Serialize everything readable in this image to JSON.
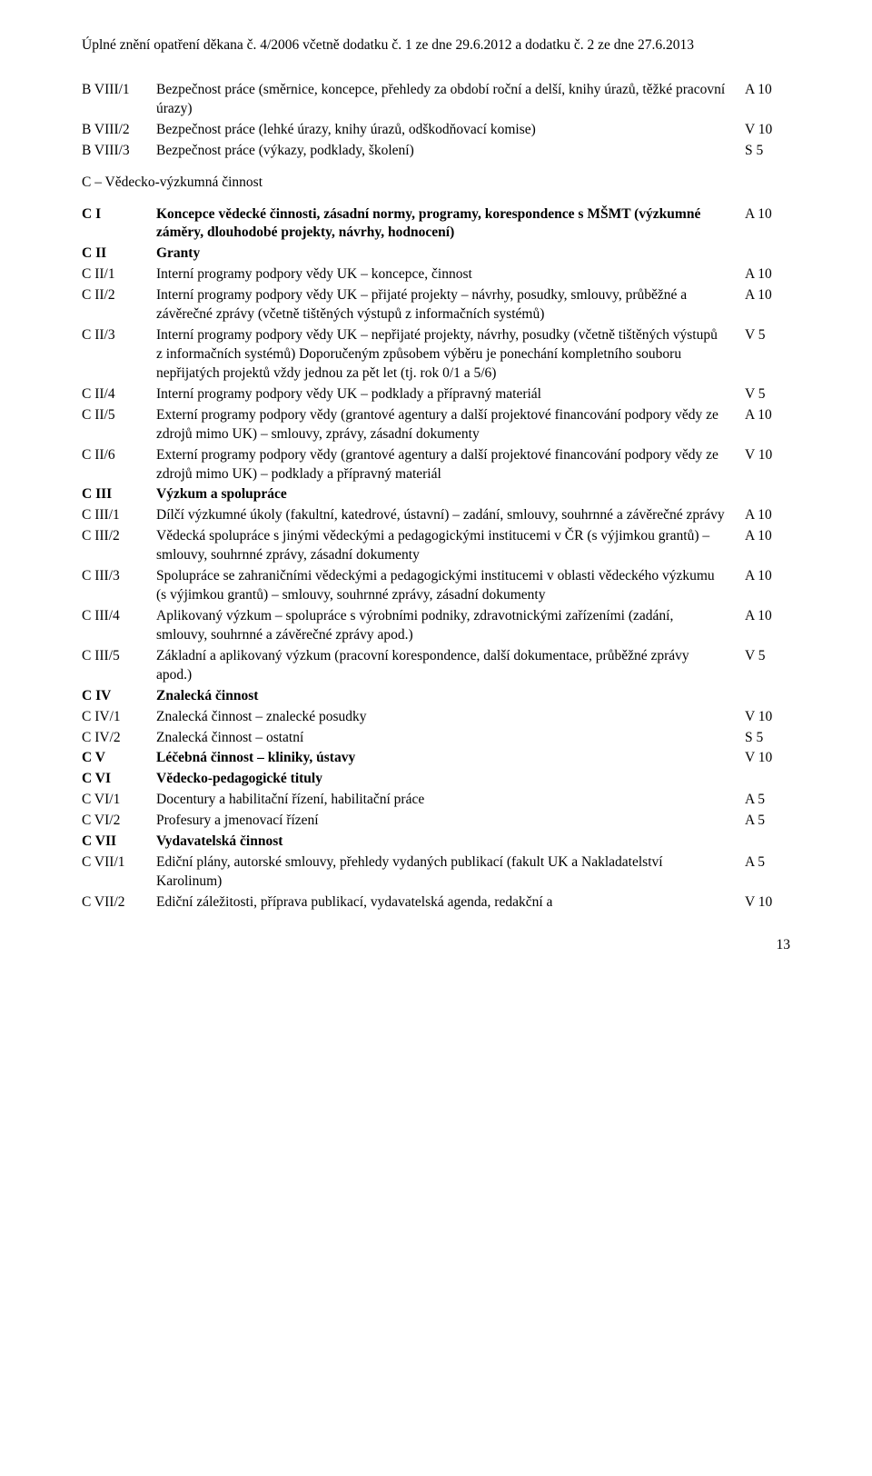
{
  "header": "Úplné znění opatření děkana č. 4/2006 včetně dodatku č. 1 ze dne 29.6.2012 a dodatku č. 2 ze dne 27.6.2013",
  "sectionC_heading": "C – Vědecko-výzkumná činnost",
  "page_number": "13",
  "rows": [
    {
      "code": "B VIII/1",
      "text": "Bezpečnost práce (směrnice, koncepce, přehledy za období roční a delší, knihy úrazů, těžké pracovní úrazy)",
      "val": "A 10",
      "bold": false
    },
    {
      "code": "B VIII/2",
      "text": "Bezpečnost práce (lehké úrazy, knihy úrazů, odškodňovací komise)",
      "val": "V 10",
      "bold": false
    },
    {
      "code": "B VIII/3",
      "text": "Bezpečnost práce (výkazy, podklady, školení)",
      "val": "S 5",
      "bold": false
    }
  ],
  "rowsC": [
    {
      "code": "C I",
      "text": "Koncepce vědecké činnosti, zásadní normy, programy, korespondence s MŠMT (výzkumné záměry, dlouhodobé projekty, návrhy, hodnocení)",
      "val": "A 10",
      "bold": true
    },
    {
      "code": "C II",
      "text": "Granty",
      "val": "",
      "bold": true
    },
    {
      "code": "C II/1",
      "text": "Interní programy podpory vědy UK – koncepce, činnost",
      "val": "A 10",
      "bold": false
    },
    {
      "code": "C II/2",
      "text": "Interní programy podpory vědy UK – přijaté projekty – návrhy, posudky, smlouvy, průběžné a závěrečné zprávy (včetně tištěných výstupů z informačních systémů)",
      "val": "A 10",
      "bold": false
    },
    {
      "code": "C II/3",
      "text": "Interní programy podpory vědy UK – nepřijaté projekty, návrhy, posudky (včetně tištěných výstupů z informačních systémů) Doporučeným způsobem výběru je ponechání kompletního souboru nepřijatých projektů vždy jednou za pět let (tj. rok 0/1 a 5/6)",
      "val": "V 5",
      "bold": false
    },
    {
      "code": "C II/4",
      "text": "Interní programy podpory vědy UK – podklady a přípravný materiál",
      "val": "V 5",
      "bold": false
    },
    {
      "code": "C II/5",
      "text": "Externí programy podpory vědy (grantové agentury a další projektové financování podpory vědy ze zdrojů mimo UK) – smlouvy, zprávy, zásadní dokumenty",
      "val": "A 10",
      "bold": false
    },
    {
      "code": "C II/6",
      "text": "Externí programy podpory vědy (grantové agentury a další projektové financování podpory vědy ze zdrojů mimo UK) – podklady a přípravný materiál",
      "val": "V 10",
      "bold": false
    },
    {
      "code": "C III",
      "text": "Výzkum a spolupráce",
      "val": "",
      "bold": true
    },
    {
      "code": "C III/1",
      "text": "Dílčí výzkumné úkoly (fakultní, katedrové, ústavní) – zadání, smlouvy, souhrnné a závěrečné zprávy",
      "val": "A 10",
      "bold": false
    },
    {
      "code": "C III/2",
      "text": "Vědecká spolupráce s jinými vědeckými a pedagogickými institucemi v ČR (s výjimkou grantů) – smlouvy, souhrnné zprávy, zásadní dokumenty",
      "val": "A 10",
      "bold": false
    },
    {
      "code": "C III/3",
      "text": "Spolupráce se zahraničními vědeckými a pedagogickými institucemi v oblasti vědeckého výzkumu (s výjimkou grantů) – smlouvy, souhrnné zprávy, zásadní dokumenty",
      "val": "A 10",
      "bold": false
    },
    {
      "code": "C III/4",
      "text": "Aplikovaný výzkum – spolupráce s výrobními podniky, zdravotnickými zařízeními (zadání, smlouvy, souhrnné a závěrečné zprávy apod.)",
      "val": "A 10",
      "bold": false
    },
    {
      "code": "C III/5",
      "text": "Základní a aplikovaný výzkum (pracovní korespondence, další dokumentace, průběžné zprávy apod.)",
      "val": "V 5",
      "bold": false
    },
    {
      "code": "C IV",
      "text": "Znalecká činnost",
      "val": "",
      "bold": true
    },
    {
      "code": "C IV/1",
      "text": "Znalecká činnost – znalecké posudky",
      "val": "V 10",
      "bold": false
    },
    {
      "code": "C IV/2",
      "text": "Znalecká činnost – ostatní",
      "val": "S 5",
      "bold": false
    },
    {
      "code": "C V",
      "text": "Léčebná činnost – kliniky, ústavy",
      "val": "V 10",
      "bold": true
    },
    {
      "code": "C VI",
      "text": "Vědecko-pedagogické tituly",
      "val": "",
      "bold": true
    },
    {
      "code": "C VI/1",
      "text": "Docentury a habilitační řízení, habilitační práce",
      "val": "A 5",
      "bold": false
    },
    {
      "code": "C VI/2",
      "text": "Profesury a jmenovací řízení",
      "val": "A 5",
      "bold": false
    },
    {
      "code": "C VII",
      "text": "Vydavatelská činnost",
      "val": "",
      "bold": true
    },
    {
      "code": "C VII/1",
      "text": "Ediční plány, autorské smlouvy, přehledy vydaných publikací (fakult UK a Nakladatelství Karolinum)",
      "val": "A 5",
      "bold": false
    },
    {
      "code": "C VII/2",
      "text": "Ediční záležitosti, příprava publikací, vydavatelská agenda, redakční a",
      "val": "V 10",
      "bold": false
    }
  ]
}
